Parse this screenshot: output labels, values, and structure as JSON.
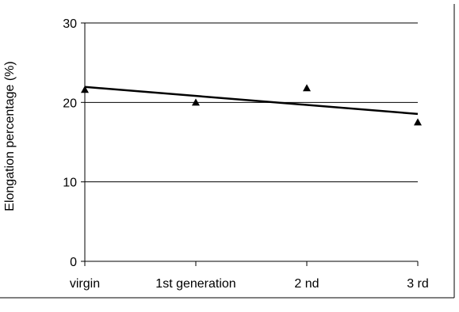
{
  "chart_data": {
    "type": "scatter",
    "title": "",
    "xlabel": "",
    "ylabel": "Elongation percentage (%)",
    "categories": [
      "virgin",
      "1st generation",
      "2 nd",
      "3 rd"
    ],
    "ylim": [
      0,
      30
    ],
    "yticks": [
      0,
      10,
      20,
      30
    ],
    "grid": true,
    "series": [
      {
        "values": [
          21.6,
          20.0,
          21.8,
          17.5
        ],
        "marker": "triangle",
        "color": "#000000"
      }
    ],
    "trendline": {
      "type": "linear",
      "start": 21.95,
      "end": 18.55,
      "color": "#000000"
    }
  }
}
